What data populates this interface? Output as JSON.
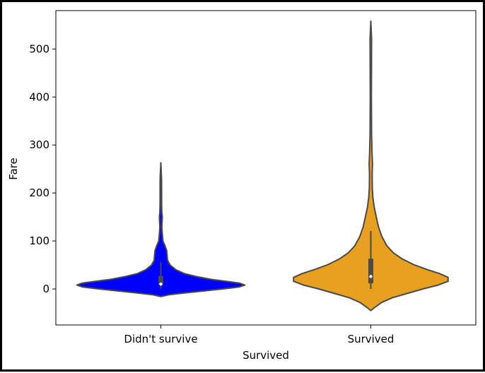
{
  "chart_data": {
    "type": "violin",
    "title": "",
    "xlabel": "Survived",
    "ylabel": "Fare",
    "ylim": [
      -75,
      580
    ],
    "yticks": [
      0,
      100,
      200,
      300,
      400,
      500
    ],
    "grid": false,
    "categories": [
      "Didn't survive",
      "Survived"
    ],
    "colors": [
      "#0000ff",
      "#e8a020"
    ],
    "outline_color": "#4a4a4a",
    "violins": [
      {
        "category": "Didn't survive",
        "range": [
          -16,
          263
        ],
        "box": {
          "q1": 8,
          "median": 10,
          "q3": 27,
          "whisker_low": 0,
          "whisker_high": 56
        },
        "density": [
          [
            -16,
            0.0
          ],
          [
            -12,
            0.1
          ],
          [
            -8,
            0.3
          ],
          [
            -4,
            0.52
          ],
          [
            0,
            0.74
          ],
          [
            4,
            0.93
          ],
          [
            8,
            1.0
          ],
          [
            12,
            0.94
          ],
          [
            16,
            0.78
          ],
          [
            20,
            0.6
          ],
          [
            26,
            0.42
          ],
          [
            32,
            0.28
          ],
          [
            40,
            0.18
          ],
          [
            50,
            0.11
          ],
          [
            60,
            0.08
          ],
          [
            70,
            0.075
          ],
          [
            80,
            0.07
          ],
          [
            90,
            0.05
          ],
          [
            100,
            0.025
          ],
          [
            110,
            0.02
          ],
          [
            120,
            0.015
          ],
          [
            130,
            0.012
          ],
          [
            140,
            0.015
          ],
          [
            150,
            0.018
          ],
          [
            160,
            0.012
          ],
          [
            175,
            0.009
          ],
          [
            200,
            0.009
          ],
          [
            230,
            0.008
          ],
          [
            263,
            0.0
          ]
        ]
      },
      {
        "category": "Survived",
        "range": [
          -45,
          558
        ],
        "box": {
          "q1": 12,
          "median": 26,
          "q3": 63,
          "whisker_low": 0,
          "whisker_high": 121
        },
        "density": [
          [
            -45,
            0.0
          ],
          [
            -38,
            0.05
          ],
          [
            -28,
            0.13
          ],
          [
            -18,
            0.26
          ],
          [
            -8,
            0.46
          ],
          [
            0,
            0.62
          ],
          [
            8,
            0.8
          ],
          [
            16,
            0.92
          ],
          [
            24,
            0.92
          ],
          [
            32,
            0.82
          ],
          [
            40,
            0.68
          ],
          [
            50,
            0.52
          ],
          [
            62,
            0.38
          ],
          [
            75,
            0.27
          ],
          [
            90,
            0.19
          ],
          [
            110,
            0.13
          ],
          [
            130,
            0.09
          ],
          [
            150,
            0.065
          ],
          [
            170,
            0.04
          ],
          [
            190,
            0.025
          ],
          [
            210,
            0.018
          ],
          [
            240,
            0.016
          ],
          [
            260,
            0.02
          ],
          [
            280,
            0.015
          ],
          [
            320,
            0.009
          ],
          [
            400,
            0.007
          ],
          [
            480,
            0.008
          ],
          [
            520,
            0.009
          ],
          [
            558,
            0.0
          ]
        ]
      }
    ]
  }
}
